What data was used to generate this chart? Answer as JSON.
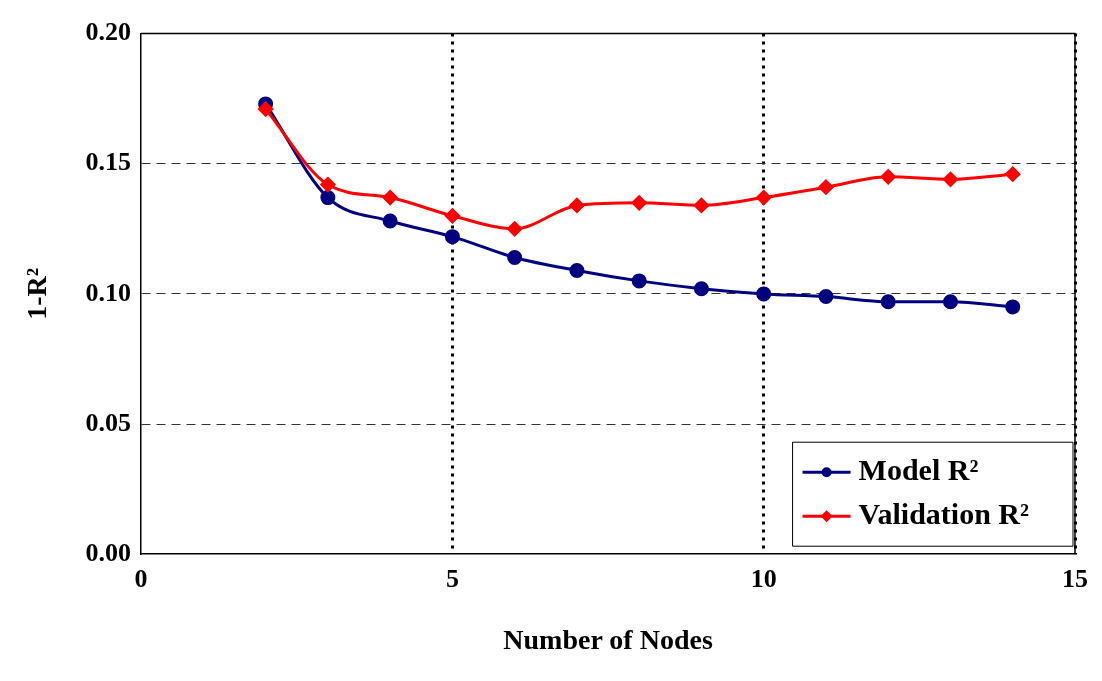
{
  "chart_data": {
    "type": "line",
    "xlabel": "Number of Nodes",
    "ylabel": "1-R²",
    "x": [
      2,
      3,
      4,
      5,
      6,
      7,
      8,
      9,
      10,
      11,
      12,
      13,
      14
    ],
    "xlim": [
      0,
      15
    ],
    "xticks": [
      0,
      5,
      10,
      15
    ],
    "ylim": [
      0,
      0.2
    ],
    "yticks": [
      {
        "value": 0,
        "label": "0.00"
      },
      0.05,
      {
        "value": 0.1,
        "label": "0.10"
      },
      0.15,
      {
        "value": 0.2,
        "label": "0.20"
      }
    ],
    "grid": true,
    "legend": "bottom right",
    "series": [
      {
        "name": "Model R²",
        "color": "#000080",
        "marker": "circle",
        "values": [
          0.173,
          0.137,
          0.128,
          0.122,
          0.114,
          0.109,
          0.105,
          0.102,
          0.1,
          0.099,
          0.097,
          0.097,
          0.095
        ]
      },
      {
        "name": "Validation R²",
        "color": "#ff0000",
        "marker": "diamond",
        "values": [
          0.171,
          0.142,
          0.137,
          0.13,
          0.125,
          0.134,
          0.135,
          0.134,
          0.137,
          0.141,
          0.145,
          0.144,
          0.146
        ]
      }
    ]
  }
}
